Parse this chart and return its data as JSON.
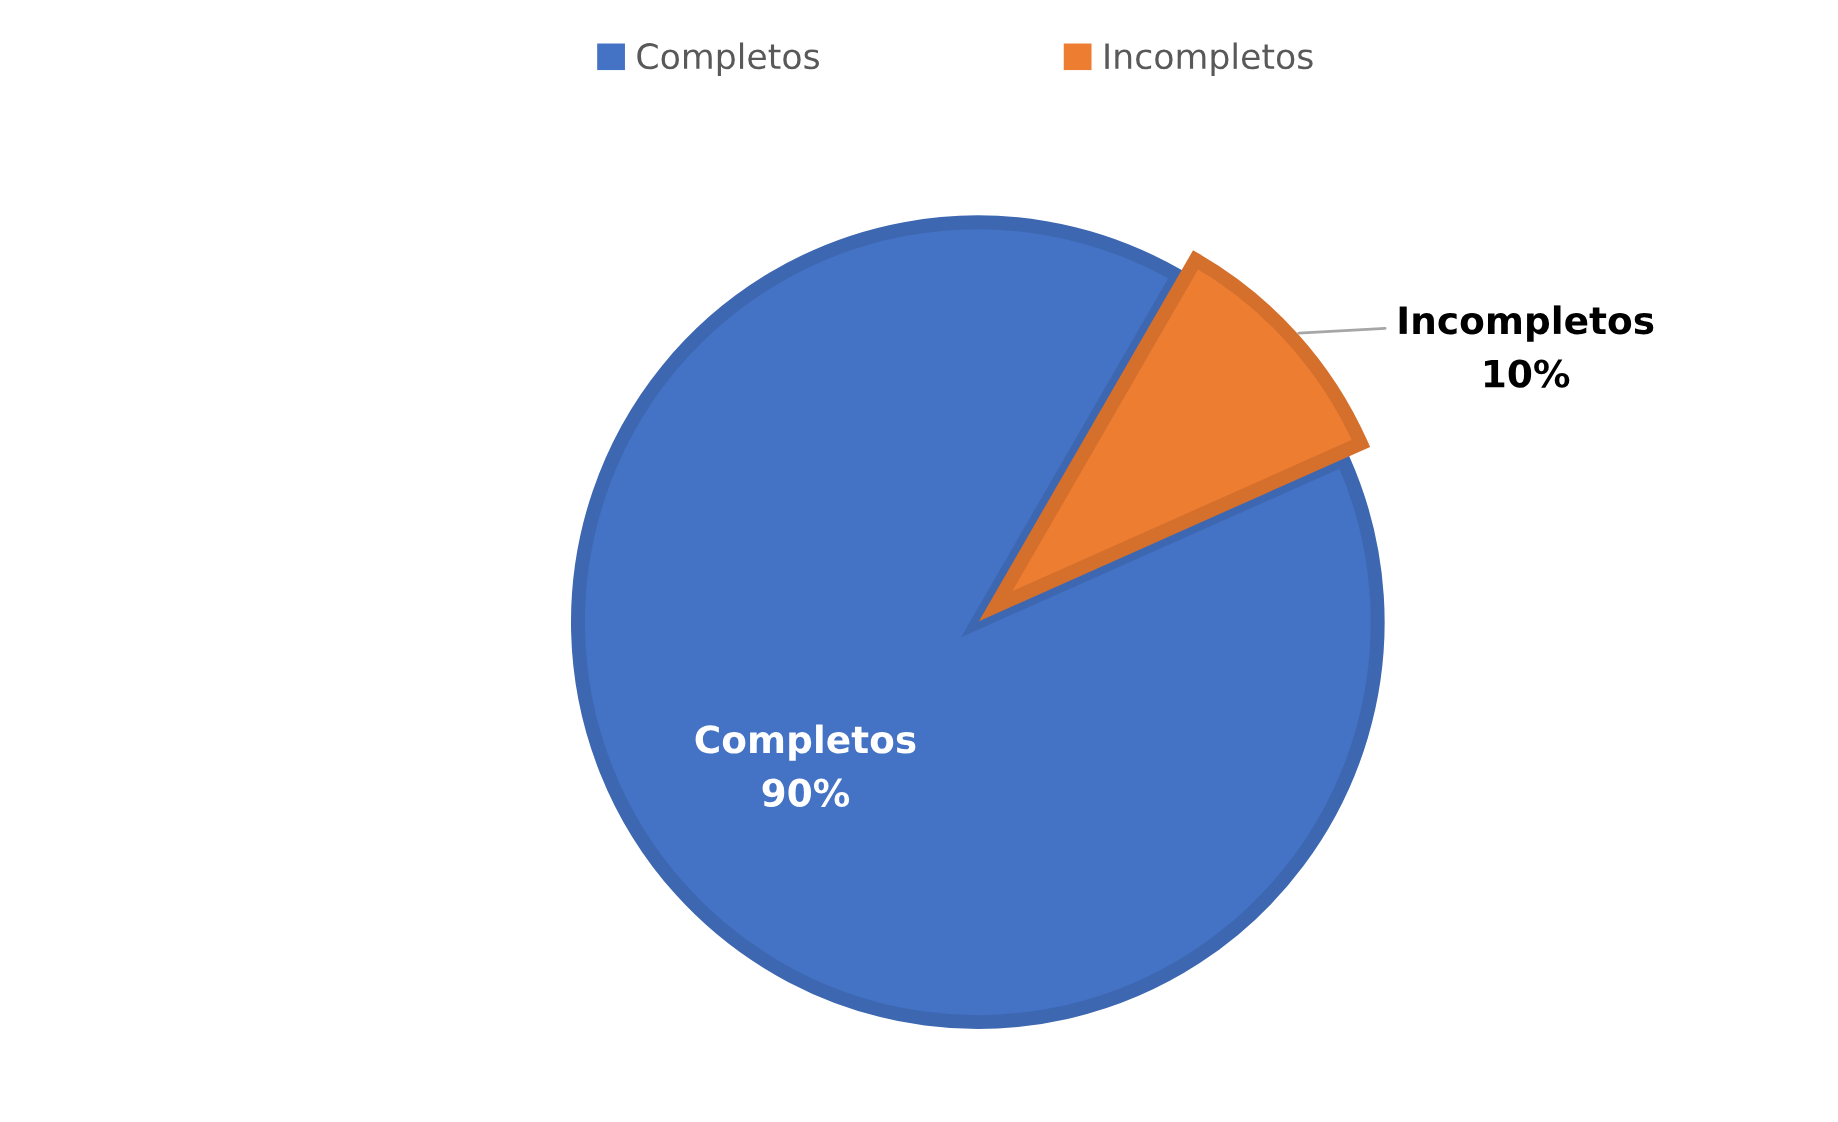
{
  "chart_data": {
    "type": "pie",
    "categories": [
      "Completos",
      "Incompletos"
    ],
    "values": [
      90,
      10
    ],
    "value_labels": [
      "90%",
      "10%"
    ],
    "colors": [
      "#4472c4",
      "#ed7d31"
    ],
    "legend": "top"
  }
}
